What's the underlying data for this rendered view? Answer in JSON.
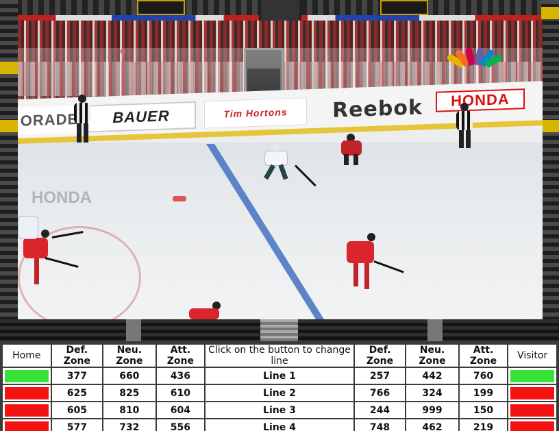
{
  "scene": {
    "ads": {
      "orade": "ORADE",
      "bauer": "BAUER",
      "tim": "Tim Hortons",
      "reebok": "Reebok",
      "honda": "HONDA",
      "honda_ice": "HONDA"
    },
    "nbc_logo_colors": [
      "#e8b400",
      "#f37021",
      "#cc004c",
      "#6460aa",
      "#0089d0",
      "#0db14b"
    ]
  },
  "table": {
    "headers": {
      "home": "Home",
      "def_zone_home": "Def. Zone",
      "neu_zone_home": "Neu. Zone",
      "att_zone_home": "Att. Zone",
      "instruction": "Click on the button to change line",
      "def_zone_vis": "Def. Zone",
      "neu_zone_vis": "Neu. Zone",
      "att_zone_vis": "Att. Zone",
      "visitor": "Visitor"
    },
    "rows": [
      {
        "home_status": "green",
        "home_def": "377",
        "home_neu": "660",
        "home_att": "436",
        "line": "Line 1",
        "vis_def": "257",
        "vis_neu": "442",
        "vis_att": "760",
        "vis_status": "green"
      },
      {
        "home_status": "red",
        "home_def": "625",
        "home_neu": "825",
        "home_att": "610",
        "line": "Line 2",
        "vis_def": "766",
        "vis_neu": "324",
        "vis_att": "199",
        "vis_status": "red"
      },
      {
        "home_status": "red",
        "home_def": "605",
        "home_neu": "810",
        "home_att": "604",
        "line": "Line 3",
        "vis_def": "244",
        "vis_neu": "999",
        "vis_att": "150",
        "vis_status": "red"
      },
      {
        "home_status": "red",
        "home_def": "577",
        "home_neu": "732",
        "home_att": "556",
        "line": "Line 4",
        "vis_def": "748",
        "vis_neu": "462",
        "vis_att": "219",
        "vis_status": "red"
      }
    ],
    "colors": {
      "green": "#36e23a",
      "red": "#f21312",
      "line_text": "#1a35c8",
      "instruction_text": "#e0141e"
    }
  }
}
